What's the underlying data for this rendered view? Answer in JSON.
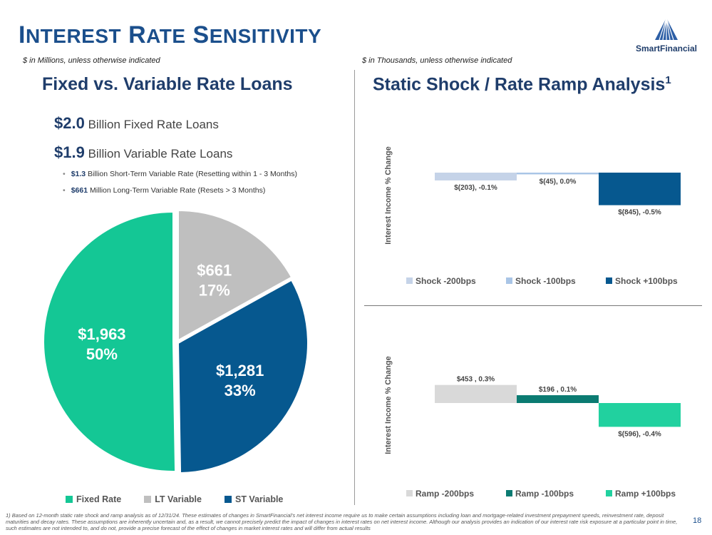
{
  "header": {
    "title_first_cap": "I",
    "title_first_rest": "NTEREST",
    "title_second_cap": "R",
    "title_second_rest": "ATE",
    "title_third_cap": "S",
    "title_third_rest": "ENSITIVITY",
    "logo_text": "SmartFinancial"
  },
  "left": {
    "units_note": "$ in Millions, unless otherwise indicated",
    "section_title": "Fixed vs. Variable Rate Loans",
    "fixed_amount": "$2.0",
    "fixed_text": "Billion Fixed Rate Loans",
    "variable_amount": "$1.9",
    "variable_text": "Billion Variable Rate Loans",
    "bullets": [
      {
        "amount": "$1.3",
        "text": "Billion Short-Term Variable Rate (Resetting within 1 - 3 Months)"
      },
      {
        "amount": "$661",
        "text": "Million Long-Term Variable Rate (Resets > 3 Months)"
      }
    ]
  },
  "right": {
    "units_note": "$ in Thousands, unless otherwise indicated",
    "section_title": "Static Shock / Rate Ramp Analysis",
    "section_sup": "1"
  },
  "chart_data": [
    {
      "type": "pie",
      "slices": [
        {
          "name": "Fixed Rate",
          "value": 1963,
          "label": "$1,963",
          "pct_label": "50%",
          "color": "#14c795"
        },
        {
          "name": "LT Variable",
          "value": 661,
          "label": "$661",
          "pct_label": "17%",
          "color": "#bfbfbf"
        },
        {
          "name": "ST Variable",
          "value": 1281,
          "label": "$1,281",
          "pct_label": "33%",
          "color": "#06588f"
        }
      ],
      "legend": [
        "Fixed Rate",
        "LT Variable",
        "ST Variable"
      ]
    },
    {
      "type": "bar",
      "ylabel": "Interest Income % Change",
      "ylim": [
        -1000,
        500
      ],
      "series": [
        {
          "name": "Shock -200bps",
          "value": -203,
          "label": "$(203), -0.1%",
          "color": "#c5d3e8"
        },
        {
          "name": "Shock -100bps",
          "value": -45,
          "label": "$(45), 0.0%",
          "color": "#a9c5e6"
        },
        {
          "name": "Shock +100bps",
          "value": -845,
          "label": "$(845), -0.5%",
          "color": "#06588f"
        }
      ]
    },
    {
      "type": "bar",
      "ylabel": "Interest Income % Change",
      "ylim": [
        -1000,
        500
      ],
      "series": [
        {
          "name": "Ramp -200bps",
          "value": 453,
          "label": "$453 , 0.3%",
          "color": "#d9d9d9"
        },
        {
          "name": "Ramp -100bps",
          "value": 196,
          "label": "$196 , 0.1%",
          "color": "#0b7b72"
        },
        {
          "name": "Ramp +100bps",
          "value": -596,
          "label": "$(596), -0.4%",
          "color": "#21d19f"
        }
      ]
    }
  ],
  "footer": {
    "footnote": "1)  Based on 12-month static rate shock and ramp analysis as of 12/31/24. These estimates of changes in SmartFinancial's net interest income require us to make certain assumptions including loan and mortgage-related investment prepayment speeds, reinvestment rate, deposit maturities and decay rates. These assumptions are inherently uncertain and, as a result, we cannot precisely predict the impact of changes in interest rates on net interest income. Although our analysis provides an indication of our interest rate risk exposure at a particular point in time, such estimates are not intended to, and do not, provide a precise forecast of the effect of changes in market interest rates and will differ from actual results",
    "page_number": "18"
  }
}
